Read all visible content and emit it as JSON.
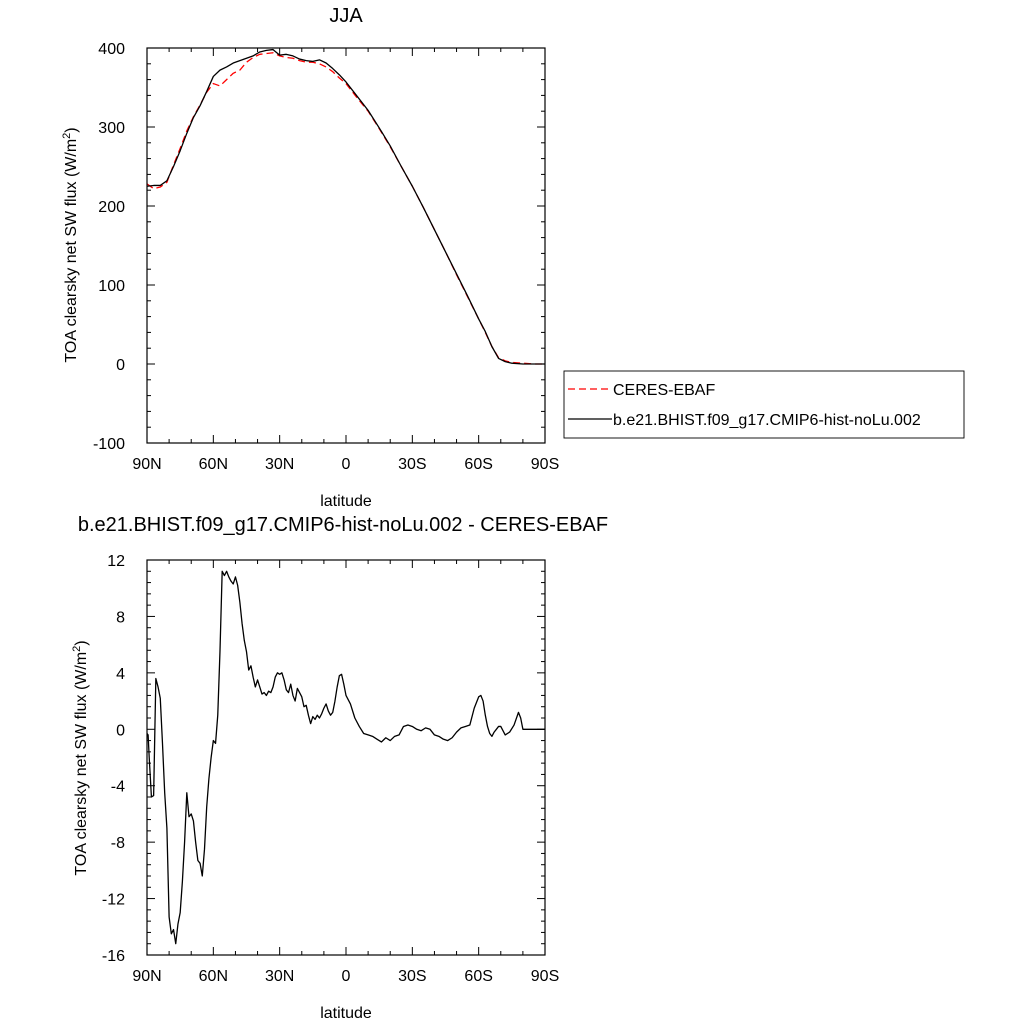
{
  "chart_data": [
    {
      "type": "line",
      "title": "JJA",
      "xlabel": "latitude",
      "ylabel": "TOA clearsky net SW flux (W/m²)",
      "ylabel_main": "TOA clearsky net SW flux (W/m",
      "ylabel_sup": "2",
      "ylabel_end": ")",
      "xlim": [
        90,
        -90
      ],
      "ylim": [
        -100,
        400
      ],
      "x_ticks": [
        90,
        60,
        30,
        0,
        -30,
        -60,
        -90
      ],
      "x_tick_labels": [
        "90N",
        "60N",
        "30N",
        "0",
        "30S",
        "60S",
        "90S"
      ],
      "y_ticks": [
        -100,
        0,
        100,
        200,
        300,
        400
      ],
      "y_tick_labels": [
        "-100",
        "0",
        "100",
        "200",
        "300",
        "400"
      ],
      "legend": "outside right",
      "series": [
        {
          "name": "CERES-EBAF",
          "color": "#ff0000",
          "dash": "dashed",
          "x": [
            90,
            87,
            84,
            81,
            78,
            75,
            72,
            69,
            66,
            63,
            60,
            57,
            54,
            51,
            48,
            45,
            42,
            39,
            36,
            33,
            30,
            27,
            24,
            21,
            18,
            15,
            12,
            9,
            6,
            3,
            0,
            -5,
            -10,
            -15,
            -20,
            -25,
            -30,
            -35,
            -40,
            -45,
            -50,
            -55,
            -60,
            -63,
            -66,
            -69,
            -72,
            -75,
            -80,
            -85,
            -90
          ],
          "values": [
            228,
            222,
            224,
            230,
            252,
            273,
            295,
            313,
            328,
            344,
            355,
            352,
            360,
            368,
            372,
            382,
            388,
            392,
            393,
            394,
            390,
            388,
            387,
            384,
            382,
            382,
            380,
            376,
            370,
            362,
            355,
            337,
            320,
            298,
            275,
            250,
            225,
            198,
            170,
            142,
            113,
            85,
            57,
            40,
            22,
            8,
            4,
            2,
            1,
            0,
            0
          ]
        },
        {
          "name": "b.e21.BHIST.f09_g17.CMIP6-hist-noLu.002",
          "color": "#000000",
          "dash": "solid",
          "x": [
            90,
            87,
            84,
            81,
            78,
            75,
            72,
            69,
            66,
            63,
            60,
            57,
            54,
            51,
            48,
            45,
            42,
            39,
            36,
            33,
            30,
            27,
            24,
            21,
            18,
            15,
            12,
            9,
            6,
            3,
            0,
            -5,
            -10,
            -15,
            -20,
            -25,
            -30,
            -35,
            -40,
            -45,
            -50,
            -55,
            -60,
            -63,
            -66,
            -69,
            -72,
            -75,
            -80,
            -85,
            -90
          ],
          "values": [
            225,
            226,
            226,
            232,
            250,
            270,
            292,
            312,
            327,
            345,
            364,
            372,
            376,
            381,
            384,
            387,
            390,
            395,
            397,
            398,
            391,
            392,
            390,
            386,
            384,
            383,
            385,
            381,
            374,
            366,
            357,
            339,
            321,
            299,
            276,
            250,
            225,
            198,
            170,
            142,
            114,
            86,
            57,
            41,
            22,
            7,
            3,
            1,
            0,
            0,
            0
          ]
        }
      ]
    },
    {
      "type": "line",
      "title": "b.e21.BHIST.f09_g17.CMIP6-hist-noLu.002 - CERES-EBAF",
      "xlabel": "latitude",
      "ylabel": "TOA clearsky net SW flux (W/m²)",
      "ylabel_main": "TOA clearsky net SW flux (W/m",
      "ylabel_sup": "2",
      "ylabel_end": ")",
      "xlim": [
        90,
        -90
      ],
      "ylim": [
        -16,
        12
      ],
      "x_ticks": [
        90,
        60,
        30,
        0,
        -30,
        -60,
        -90
      ],
      "x_tick_labels": [
        "90N",
        "60N",
        "30N",
        "0",
        "30S",
        "60S",
        "90S"
      ],
      "y_ticks": [
        -16,
        -12,
        -8,
        -4,
        0,
        4,
        8,
        12
      ],
      "y_tick_labels": [
        "-16",
        "-12",
        "-8",
        "-4",
        "0",
        "4",
        "8",
        "12"
      ],
      "series": [
        {
          "color": "#000000",
          "dash": "solid",
          "x": [
            90,
            89.5,
            89,
            88,
            87,
            86,
            85,
            84,
            83,
            82,
            81,
            80,
            79,
            78,
            77,
            76,
            75,
            74,
            73,
            72,
            71,
            70,
            69,
            68,
            67,
            66,
            65,
            64,
            63,
            62,
            61,
            60,
            59,
            58,
            57,
            56,
            55,
            54,
            53,
            52,
            51,
            50,
            49,
            48,
            47,
            46,
            45,
            44,
            43,
            42,
            41,
            40,
            39,
            38,
            37,
            36,
            35,
            34,
            33,
            32,
            31,
            30,
            29,
            28,
            27,
            26,
            25,
            24,
            23,
            22,
            21,
            20,
            19,
            18,
            17,
            16,
            15,
            14,
            13,
            12,
            11,
            10,
            9,
            8,
            7,
            6,
            5,
            4,
            3,
            2,
            1,
            0,
            -2,
            -4,
            -6,
            -8,
            -10,
            -12,
            -14,
            -16,
            -18,
            -20,
            -22,
            -24,
            -26,
            -28,
            -30,
            -32,
            -34,
            -36,
            -38,
            -40,
            -42,
            -44,
            -46,
            -48,
            -50,
            -52,
            -54,
            -56,
            -58,
            -60,
            -61,
            -62,
            -63,
            -64,
            -65,
            -66,
            -67,
            -68,
            -69,
            -70,
            -72,
            -74,
            -76,
            -78,
            -79,
            -80,
            -82,
            -84,
            -86,
            -88,
            -90
          ],
          "values": [
            -0.3,
            -0.4,
            -2.0,
            -4.8,
            -4.7,
            3.6,
            3.0,
            2.2,
            -1.0,
            -4.5,
            -7.0,
            -13.3,
            -14.5,
            -14.2,
            -15.2,
            -13.8,
            -13.0,
            -10.8,
            -8.0,
            -4.5,
            -6.2,
            -6.0,
            -6.5,
            -8.0,
            -9.3,
            -9.5,
            -10.4,
            -8.5,
            -5.5,
            -3.5,
            -2.0,
            -0.8,
            -1.0,
            1.0,
            5.5,
            11.2,
            10.9,
            11.2,
            10.8,
            10.5,
            10.3,
            10.8,
            10.2,
            9.0,
            7.5,
            6.3,
            5.5,
            4.2,
            4.5,
            3.7,
            3.0,
            3.5,
            3.0,
            2.5,
            2.6,
            2.4,
            2.7,
            2.6,
            3.0,
            3.7,
            4.0,
            3.9,
            4.0,
            3.5,
            2.8,
            2.6,
            3.2,
            2.4,
            2.0,
            2.9,
            2.6,
            2.3,
            1.6,
            1.7,
            1.0,
            0.4,
            0.9,
            0.7,
            1.0,
            0.8,
            1.1,
            1.5,
            1.8,
            1.3,
            1.0,
            1.2,
            2.0,
            3.0,
            3.8,
            3.9,
            3.2,
            2.4,
            1.8,
            0.8,
            0.2,
            -0.3,
            -0.4,
            -0.5,
            -0.7,
            -0.9,
            -0.6,
            -0.8,
            -0.5,
            -0.4,
            0.2,
            0.3,
            0.2,
            0.0,
            -0.1,
            0.1,
            0.0,
            -0.4,
            -0.5,
            -0.7,
            -0.8,
            -0.6,
            -0.2,
            0.1,
            0.2,
            0.3,
            1.5,
            2.3,
            2.4,
            2.0,
            1.0,
            0.2,
            -0.3,
            -0.5,
            -0.2,
            0.0,
            0.2,
            0.2,
            -0.4,
            -0.2,
            0.3,
            1.2,
            0.8,
            0.0,
            0.0,
            0.0,
            0.0,
            0.0,
            0.0
          ]
        }
      ]
    }
  ]
}
